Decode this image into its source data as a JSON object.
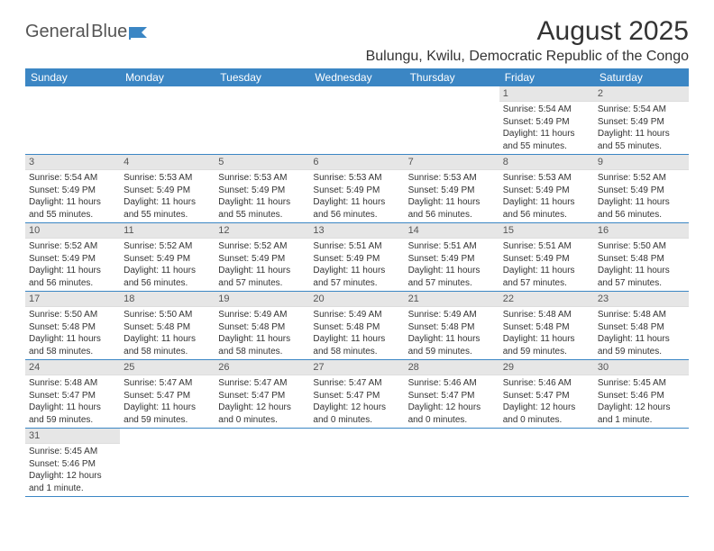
{
  "logo": {
    "text1": "General",
    "text2": "Blue"
  },
  "title": "August 2025",
  "location": "Bulungu, Kwilu, Democratic Republic of the Congo",
  "colors": {
    "header_bg": "#3b86c4",
    "header_text": "#ffffff",
    "daynum_bg": "#e6e6e6",
    "row_border": "#3b86c4",
    "body_text": "#333333",
    "logo_gray": "#555555",
    "logo_blue": "#4a8fc9"
  },
  "weekdays": [
    "Sunday",
    "Monday",
    "Tuesday",
    "Wednesday",
    "Thursday",
    "Friday",
    "Saturday"
  ],
  "weeks": [
    [
      {
        "empty": true
      },
      {
        "empty": true
      },
      {
        "empty": true
      },
      {
        "empty": true
      },
      {
        "empty": true
      },
      {
        "day": "1",
        "sunrise": "Sunrise: 5:54 AM",
        "sunset": "Sunset: 5:49 PM",
        "daylight": "Daylight: 11 hours and 55 minutes."
      },
      {
        "day": "2",
        "sunrise": "Sunrise: 5:54 AM",
        "sunset": "Sunset: 5:49 PM",
        "daylight": "Daylight: 11 hours and 55 minutes."
      }
    ],
    [
      {
        "day": "3",
        "sunrise": "Sunrise: 5:54 AM",
        "sunset": "Sunset: 5:49 PM",
        "daylight": "Daylight: 11 hours and 55 minutes."
      },
      {
        "day": "4",
        "sunrise": "Sunrise: 5:53 AM",
        "sunset": "Sunset: 5:49 PM",
        "daylight": "Daylight: 11 hours and 55 minutes."
      },
      {
        "day": "5",
        "sunrise": "Sunrise: 5:53 AM",
        "sunset": "Sunset: 5:49 PM",
        "daylight": "Daylight: 11 hours and 55 minutes."
      },
      {
        "day": "6",
        "sunrise": "Sunrise: 5:53 AM",
        "sunset": "Sunset: 5:49 PM",
        "daylight": "Daylight: 11 hours and 56 minutes."
      },
      {
        "day": "7",
        "sunrise": "Sunrise: 5:53 AM",
        "sunset": "Sunset: 5:49 PM",
        "daylight": "Daylight: 11 hours and 56 minutes."
      },
      {
        "day": "8",
        "sunrise": "Sunrise: 5:53 AM",
        "sunset": "Sunset: 5:49 PM",
        "daylight": "Daylight: 11 hours and 56 minutes."
      },
      {
        "day": "9",
        "sunrise": "Sunrise: 5:52 AM",
        "sunset": "Sunset: 5:49 PM",
        "daylight": "Daylight: 11 hours and 56 minutes."
      }
    ],
    [
      {
        "day": "10",
        "sunrise": "Sunrise: 5:52 AM",
        "sunset": "Sunset: 5:49 PM",
        "daylight": "Daylight: 11 hours and 56 minutes."
      },
      {
        "day": "11",
        "sunrise": "Sunrise: 5:52 AM",
        "sunset": "Sunset: 5:49 PM",
        "daylight": "Daylight: 11 hours and 56 minutes."
      },
      {
        "day": "12",
        "sunrise": "Sunrise: 5:52 AM",
        "sunset": "Sunset: 5:49 PM",
        "daylight": "Daylight: 11 hours and 57 minutes."
      },
      {
        "day": "13",
        "sunrise": "Sunrise: 5:51 AM",
        "sunset": "Sunset: 5:49 PM",
        "daylight": "Daylight: 11 hours and 57 minutes."
      },
      {
        "day": "14",
        "sunrise": "Sunrise: 5:51 AM",
        "sunset": "Sunset: 5:49 PM",
        "daylight": "Daylight: 11 hours and 57 minutes."
      },
      {
        "day": "15",
        "sunrise": "Sunrise: 5:51 AM",
        "sunset": "Sunset: 5:49 PM",
        "daylight": "Daylight: 11 hours and 57 minutes."
      },
      {
        "day": "16",
        "sunrise": "Sunrise: 5:50 AM",
        "sunset": "Sunset: 5:48 PM",
        "daylight": "Daylight: 11 hours and 57 minutes."
      }
    ],
    [
      {
        "day": "17",
        "sunrise": "Sunrise: 5:50 AM",
        "sunset": "Sunset: 5:48 PM",
        "daylight": "Daylight: 11 hours and 58 minutes."
      },
      {
        "day": "18",
        "sunrise": "Sunrise: 5:50 AM",
        "sunset": "Sunset: 5:48 PM",
        "daylight": "Daylight: 11 hours and 58 minutes."
      },
      {
        "day": "19",
        "sunrise": "Sunrise: 5:49 AM",
        "sunset": "Sunset: 5:48 PM",
        "daylight": "Daylight: 11 hours and 58 minutes."
      },
      {
        "day": "20",
        "sunrise": "Sunrise: 5:49 AM",
        "sunset": "Sunset: 5:48 PM",
        "daylight": "Daylight: 11 hours and 58 minutes."
      },
      {
        "day": "21",
        "sunrise": "Sunrise: 5:49 AM",
        "sunset": "Sunset: 5:48 PM",
        "daylight": "Daylight: 11 hours and 59 minutes."
      },
      {
        "day": "22",
        "sunrise": "Sunrise: 5:48 AM",
        "sunset": "Sunset: 5:48 PM",
        "daylight": "Daylight: 11 hours and 59 minutes."
      },
      {
        "day": "23",
        "sunrise": "Sunrise: 5:48 AM",
        "sunset": "Sunset: 5:48 PM",
        "daylight": "Daylight: 11 hours and 59 minutes."
      }
    ],
    [
      {
        "day": "24",
        "sunrise": "Sunrise: 5:48 AM",
        "sunset": "Sunset: 5:47 PM",
        "daylight": "Daylight: 11 hours and 59 minutes."
      },
      {
        "day": "25",
        "sunrise": "Sunrise: 5:47 AM",
        "sunset": "Sunset: 5:47 PM",
        "daylight": "Daylight: 11 hours and 59 minutes."
      },
      {
        "day": "26",
        "sunrise": "Sunrise: 5:47 AM",
        "sunset": "Sunset: 5:47 PM",
        "daylight": "Daylight: 12 hours and 0 minutes."
      },
      {
        "day": "27",
        "sunrise": "Sunrise: 5:47 AM",
        "sunset": "Sunset: 5:47 PM",
        "daylight": "Daylight: 12 hours and 0 minutes."
      },
      {
        "day": "28",
        "sunrise": "Sunrise: 5:46 AM",
        "sunset": "Sunset: 5:47 PM",
        "daylight": "Daylight: 12 hours and 0 minutes."
      },
      {
        "day": "29",
        "sunrise": "Sunrise: 5:46 AM",
        "sunset": "Sunset: 5:47 PM",
        "daylight": "Daylight: 12 hours and 0 minutes."
      },
      {
        "day": "30",
        "sunrise": "Sunrise: 5:45 AM",
        "sunset": "Sunset: 5:46 PM",
        "daylight": "Daylight: 12 hours and 1 minute."
      }
    ],
    [
      {
        "day": "31",
        "sunrise": "Sunrise: 5:45 AM",
        "sunset": "Sunset: 5:46 PM",
        "daylight": "Daylight: 12 hours and 1 minute."
      },
      {
        "empty": true,
        "noborder": true
      },
      {
        "empty": true,
        "noborder": true
      },
      {
        "empty": true,
        "noborder": true
      },
      {
        "empty": true,
        "noborder": true
      },
      {
        "empty": true,
        "noborder": true
      },
      {
        "empty": true,
        "noborder": true
      }
    ]
  ]
}
